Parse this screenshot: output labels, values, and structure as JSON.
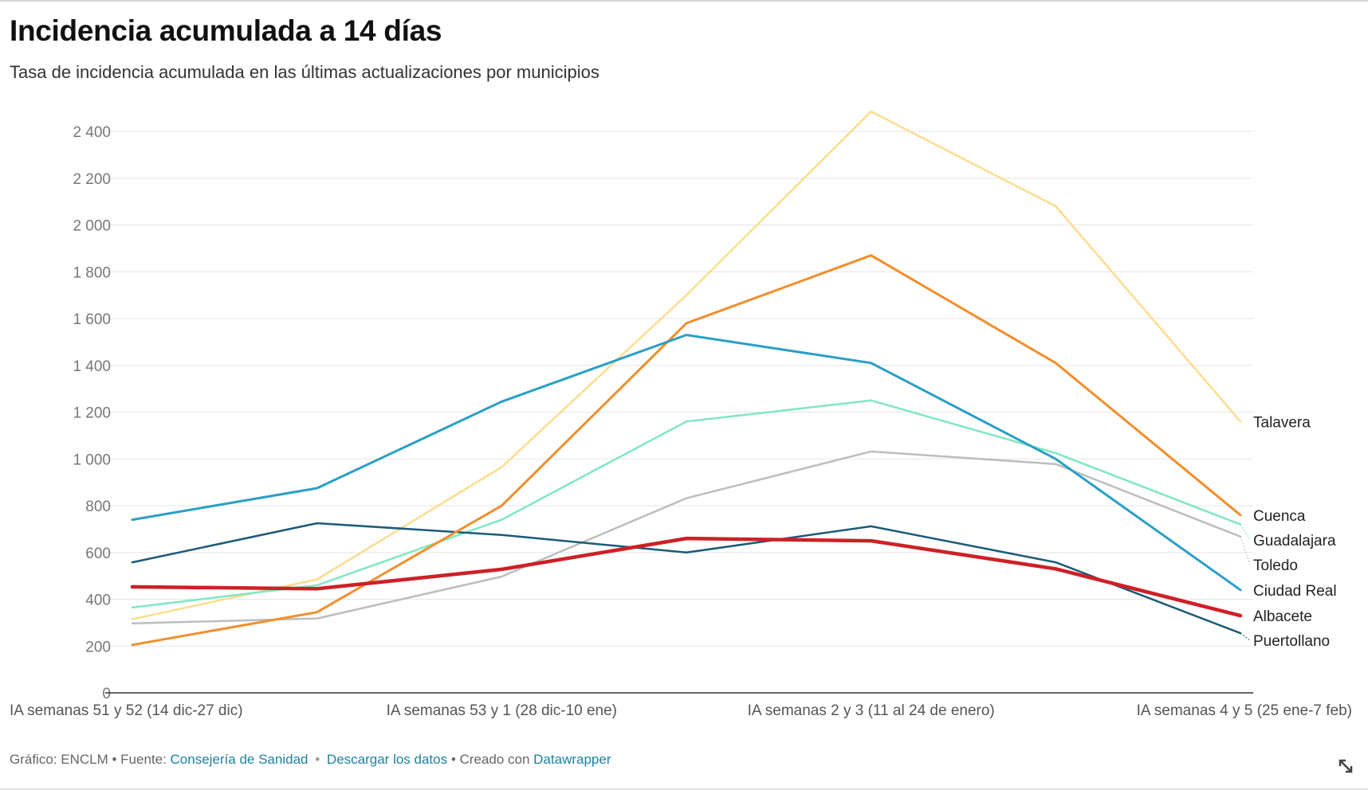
{
  "header": {
    "title": "Incidencia acumulada a 14 días",
    "subtitle": "Tasa de incidencia acumulada en las últimas actualizaciones por municipios"
  },
  "footer": {
    "credit_prefix": "Gráfico: ENCLM • Fuente:",
    "source_link": "Consejería de Sanidad",
    "download_link": "Descargar los datos",
    "created_prefix": "• Creado con",
    "tool_link": "Datawrapper",
    "link_color": "#1d81a2"
  },
  "icons": {
    "resize": "resize-arrow-icon"
  },
  "chart_data": {
    "type": "line",
    "title": "Incidencia acumulada a 14 días",
    "subtitle": "Tasa de incidencia acumulada en las últimas actualizaciones por municipios",
    "xlabel": "",
    "ylabel": "",
    "ylim": [
      0,
      2500
    ],
    "yticks": [
      0,
      200,
      400,
      600,
      800,
      1000,
      1200,
      1400,
      1600,
      1800,
      2000,
      2200,
      2400
    ],
    "ytick_labels": [
      "0",
      "200",
      "400",
      "600",
      "800",
      "1 000",
      "1 200",
      "1 400",
      "1 600",
      "1 800",
      "2 000",
      "2 200",
      "2 400"
    ],
    "grid": true,
    "legend": "direct-labels-right",
    "x": [
      0,
      1,
      2,
      3,
      4,
      5,
      6
    ],
    "x_tick_labels": [
      {
        "at": 0,
        "label": "IA semanas 51 y 52 (14 dic-27 dic)"
      },
      {
        "at": 2,
        "label": "IA semanas 53 y 1 (28 dic-10 ene)"
      },
      {
        "at": 4,
        "label": "IA semanas 2 y 3 (11 al 24 de enero)"
      },
      {
        "at": 6,
        "label": "IA semanas 4 y 5 (25 ene-7 feb)"
      }
    ],
    "series": [
      {
        "name": "Talavera",
        "color": "#fddc8e",
        "width": 2.5,
        "values": [
          315,
          485,
          965,
          1700,
          2485,
          2080,
          1160
        ]
      },
      {
        "name": "Cuenca",
        "color": "#f28e2b",
        "width": 3,
        "values": [
          205,
          345,
          800,
          1580,
          1870,
          1410,
          760
        ]
      },
      {
        "name": "Guadalajara",
        "color": "#7fe8c0",
        "width": 2.5,
        "values": [
          365,
          460,
          740,
          1160,
          1250,
          1025,
          720
        ]
      },
      {
        "name": "Toledo",
        "color": "#bdbdbd",
        "width": 2.5,
        "values": [
          297,
          318,
          497,
          832,
          1032,
          978,
          668
        ]
      },
      {
        "name": "Ciudad Real",
        "color": "#2a9fc6",
        "width": 3,
        "values": [
          740,
          875,
          1245,
          1530,
          1410,
          1000,
          440
        ]
      },
      {
        "name": "Albacete",
        "color": "#cd2026",
        "width": 4.5,
        "values": [
          453,
          445,
          528,
          660,
          650,
          530,
          330
        ]
      },
      {
        "name": "Puertollano",
        "color": "#1b5a78",
        "width": 2.5,
        "values": [
          558,
          725,
          675,
          600,
          712,
          558,
          255
        ]
      }
    ]
  }
}
